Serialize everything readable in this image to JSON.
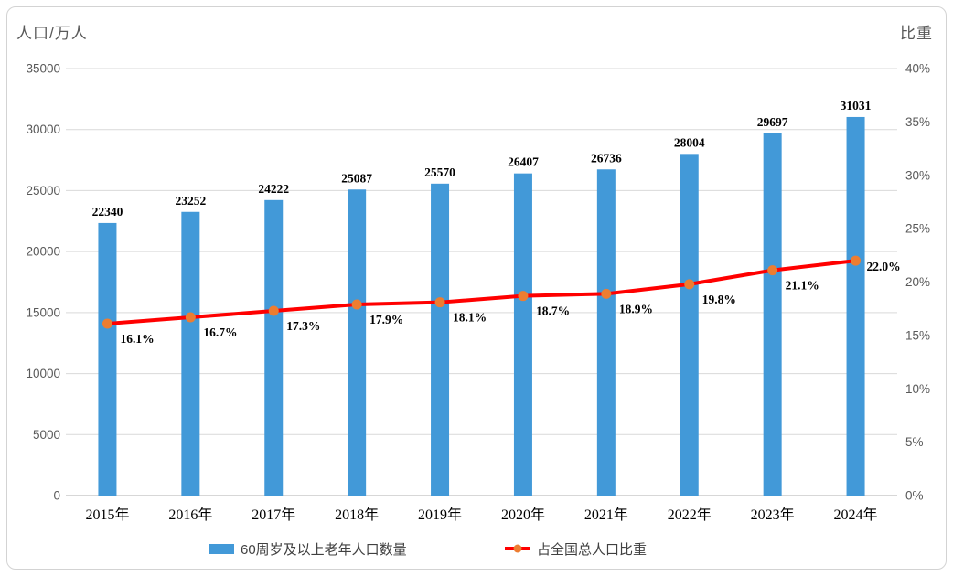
{
  "chart_data": {
    "type": "bar",
    "categories": [
      "2015年",
      "2016年",
      "2017年",
      "2018年",
      "2019年",
      "2020年",
      "2021年",
      "2022年",
      "2023年",
      "2024年"
    ],
    "series": [
      {
        "name": "60周岁及以上老年人口数量",
        "type": "bar",
        "axis": "left",
        "values": [
          22340,
          23252,
          24222,
          25087,
          25570,
          26407,
          26736,
          28004,
          29697,
          31031
        ],
        "data_labels": [
          "22340",
          "23252",
          "24222",
          "25087",
          "25570",
          "26407",
          "26736",
          "28004",
          "29697",
          "31031"
        ],
        "color": "#4299D8"
      },
      {
        "name": "占全国总人口比重",
        "type": "line",
        "axis": "right",
        "values": [
          16.1,
          16.7,
          17.3,
          17.9,
          18.1,
          18.7,
          18.9,
          19.8,
          21.1,
          22.0
        ],
        "data_labels": [
          "16.1%",
          "16.7%",
          "17.3%",
          "17.9%",
          "18.1%",
          "18.7%",
          "18.9%",
          "19.8%",
          "21.1%",
          "22.0%"
        ],
        "line_color": "#FF0000",
        "marker_color": "#ED7D31"
      }
    ],
    "left_axis": {
      "title": "人口/万人",
      "min": 0,
      "max": 35000,
      "step": 5000,
      "ticks": [
        "0",
        "5000",
        "10000",
        "15000",
        "20000",
        "25000",
        "30000",
        "35000"
      ]
    },
    "right_axis": {
      "title": "比重",
      "min": 0,
      "max": 40,
      "step": 5,
      "ticks": [
        "0%",
        "5%",
        "10%",
        "15%",
        "20%",
        "25%",
        "30%",
        "35%",
        "40%"
      ]
    },
    "title": "",
    "grid": true,
    "legend_position": "bottom",
    "grid_color": "#D9D9D9",
    "axis_line_color": "#BFBFBF"
  }
}
